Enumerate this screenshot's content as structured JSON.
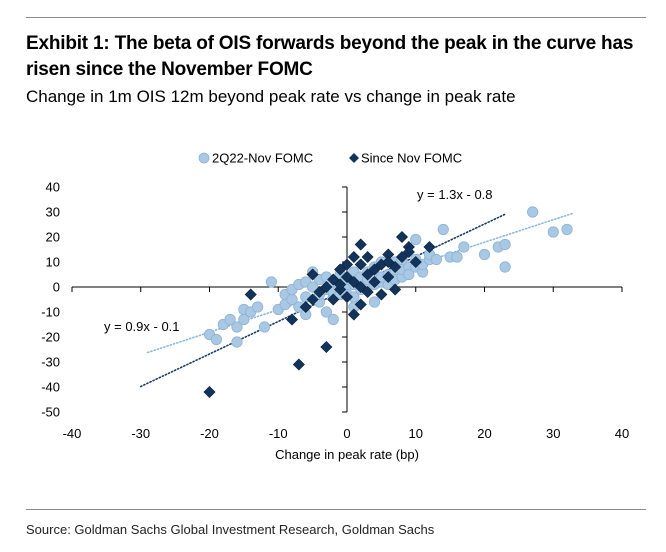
{
  "header": {
    "title": "Exhibit 1: The beta of OIS forwards beyond the peak in the curve has risen since the November FOMC",
    "subtitle": "Change in 1m OIS 12m beyond peak rate vs change in peak rate"
  },
  "footer": {
    "source": "Source: Goldman Sachs Global Investment Research, Goldman Sachs"
  },
  "colors": {
    "series1_fill": "#a9c8e4",
    "series1_stroke": "#8fb3d6",
    "series2_fill": "#13345a",
    "trend1": "#8ab8e0",
    "trend2": "#1b3c68"
  },
  "chart_data": {
    "type": "scatter",
    "title": "",
    "xlabel": "Change in peak rate (bp)",
    "ylabel": "",
    "xlim": [
      -40,
      40
    ],
    "ylim": [
      -50,
      40
    ],
    "xticks": [
      -40,
      -30,
      -20,
      -10,
      0,
      10,
      20,
      30,
      40
    ],
    "yticks": [
      -50,
      -40,
      -30,
      -20,
      -10,
      0,
      10,
      20,
      30,
      40
    ],
    "grid": false,
    "legend_position": "top-center",
    "series": [
      {
        "name": "2Q22-Nov FOMC",
        "marker": "circle",
        "points": [
          [
            -20,
            -19
          ],
          [
            -19,
            -21
          ],
          [
            -18,
            -15
          ],
          [
            -17,
            -13
          ],
          [
            -16,
            -16
          ],
          [
            -16,
            -22
          ],
          [
            -15,
            -13
          ],
          [
            -15,
            -9
          ],
          [
            -14,
            -10
          ],
          [
            -13,
            -8
          ],
          [
            -12,
            -16
          ],
          [
            -11,
            2
          ],
          [
            -10,
            -9
          ],
          [
            -9,
            -3
          ],
          [
            -9,
            -7
          ],
          [
            -8,
            -5
          ],
          [
            -8,
            -1
          ],
          [
            -7,
            1
          ],
          [
            -7,
            -8
          ],
          [
            -6,
            2
          ],
          [
            -6,
            -4
          ],
          [
            -5,
            6
          ],
          [
            -5,
            0
          ],
          [
            -4,
            3
          ],
          [
            -4,
            -6
          ],
          [
            -4,
            -3
          ],
          [
            -3,
            4
          ],
          [
            -3,
            -1
          ],
          [
            -2,
            2
          ],
          [
            -2,
            -4
          ],
          [
            -2,
            -2
          ],
          [
            -1,
            5
          ],
          [
            -1,
            0
          ],
          [
            -1,
            -3
          ],
          [
            0,
            0
          ],
          [
            0,
            3
          ],
          [
            0,
            -3
          ],
          [
            1,
            1
          ],
          [
            1,
            6
          ],
          [
            1,
            -4
          ],
          [
            2,
            2
          ],
          [
            2,
            4
          ],
          [
            2,
            -1
          ],
          [
            3,
            6
          ],
          [
            3,
            0
          ],
          [
            3,
            3
          ],
          [
            4,
            1
          ],
          [
            4,
            8
          ],
          [
            4,
            5
          ],
          [
            4,
            -6
          ],
          [
            5,
            2
          ],
          [
            5,
            10
          ],
          [
            5,
            4
          ],
          [
            6,
            5
          ],
          [
            6,
            1
          ],
          [
            7,
            10
          ],
          [
            7,
            6
          ],
          [
            7,
            3
          ],
          [
            8,
            4
          ],
          [
            8,
            11
          ],
          [
            8,
            7
          ],
          [
            9,
            8
          ],
          [
            9,
            5
          ],
          [
            10,
            11
          ],
          [
            10,
            8
          ],
          [
            10,
            19
          ],
          [
            11,
            6
          ],
          [
            11,
            9
          ],
          [
            12,
            11
          ],
          [
            12,
            13
          ],
          [
            13,
            11
          ],
          [
            14,
            23
          ],
          [
            15,
            12
          ],
          [
            16,
            12
          ],
          [
            17,
            16
          ],
          [
            22,
            16
          ],
          [
            23,
            17
          ],
          [
            23,
            8
          ],
          [
            27,
            30
          ],
          [
            30,
            22
          ],
          [
            32,
            23
          ],
          [
            20,
            13
          ],
          [
            -6,
            -11
          ],
          [
            -3,
            -10
          ],
          [
            -2,
            -13
          ],
          [
            1,
            -8
          ]
        ]
      },
      {
        "name": "Since Nov FOMC",
        "marker": "diamond",
        "points": [
          [
            -20,
            -42
          ],
          [
            -7,
            -31
          ],
          [
            -3,
            -24
          ],
          [
            -8,
            -13
          ],
          [
            -14,
            -3
          ],
          [
            -6,
            -8
          ],
          [
            -5,
            5
          ],
          [
            -4,
            -2
          ],
          [
            -5,
            -5
          ],
          [
            -3,
            0
          ],
          [
            -2,
            3
          ],
          [
            -2,
            -5
          ],
          [
            -1,
            -1
          ],
          [
            -1,
            7
          ],
          [
            0,
            4
          ],
          [
            0,
            -4
          ],
          [
            1,
            2
          ],
          [
            1,
            -11
          ],
          [
            1,
            12
          ],
          [
            2,
            17
          ],
          [
            2,
            9
          ],
          [
            2,
            0
          ],
          [
            3,
            5
          ],
          [
            3,
            -2
          ],
          [
            4,
            7
          ],
          [
            4,
            2
          ],
          [
            5,
            9
          ],
          [
            5,
            -3
          ],
          [
            6,
            13
          ],
          [
            6,
            4
          ],
          [
            7,
            8
          ],
          [
            7,
            -1
          ],
          [
            8,
            20
          ],
          [
            8,
            12
          ],
          [
            9,
            16
          ],
          [
            9,
            14
          ],
          [
            10,
            10
          ],
          [
            12,
            16
          ],
          [
            -1,
            1
          ],
          [
            0,
            9
          ],
          [
            2,
            -7
          ],
          [
            3,
            12
          ],
          [
            6,
            10
          ]
        ]
      }
    ],
    "trendlines": [
      {
        "series": "2Q22-Nov FOMC",
        "label": "y = 0.9x - 0.1",
        "slope": 0.9,
        "intercept": -0.1,
        "x_range": [
          -29,
          33
        ],
        "style": "dotted"
      },
      {
        "series": "Since Nov FOMC",
        "label": "y = 1.3x - 0.8",
        "slope": 1.3,
        "intercept": -0.8,
        "x_range": [
          -30,
          23
        ],
        "style": "dotted"
      }
    ]
  }
}
